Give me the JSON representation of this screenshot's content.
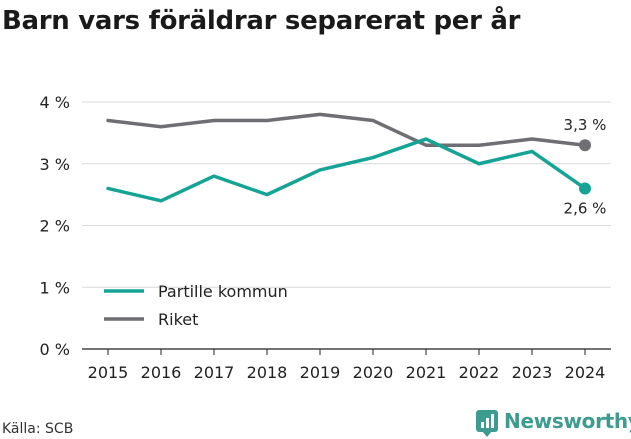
{
  "title": "Barn vars föräldrar separerat per år",
  "source": "Källa: SCB",
  "brand": "Newsworthy",
  "chart_data": {
    "type": "line",
    "x": [
      "2015",
      "2016",
      "2017",
      "2018",
      "2019",
      "2020",
      "2021",
      "2022",
      "2023",
      "2024"
    ],
    "yticks": [
      "0 %",
      "1 %",
      "2 %",
      "3 %",
      "4 %"
    ],
    "ylim": [
      0,
      4
    ],
    "grid": true,
    "legend_position": "left",
    "series": [
      {
        "name": "Partille kommun",
        "color": "#15a396",
        "values": [
          2.6,
          2.4,
          2.8,
          2.5,
          2.9,
          3.1,
          3.4,
          3.0,
          3.2,
          2.6
        ],
        "end_label": "2,6 %"
      },
      {
        "name": "Riket",
        "color": "#6e6e73",
        "values": [
          3.7,
          3.6,
          3.7,
          3.7,
          3.8,
          3.7,
          3.3,
          3.3,
          3.4,
          3.3
        ],
        "end_label": "3,3 %"
      }
    ]
  }
}
